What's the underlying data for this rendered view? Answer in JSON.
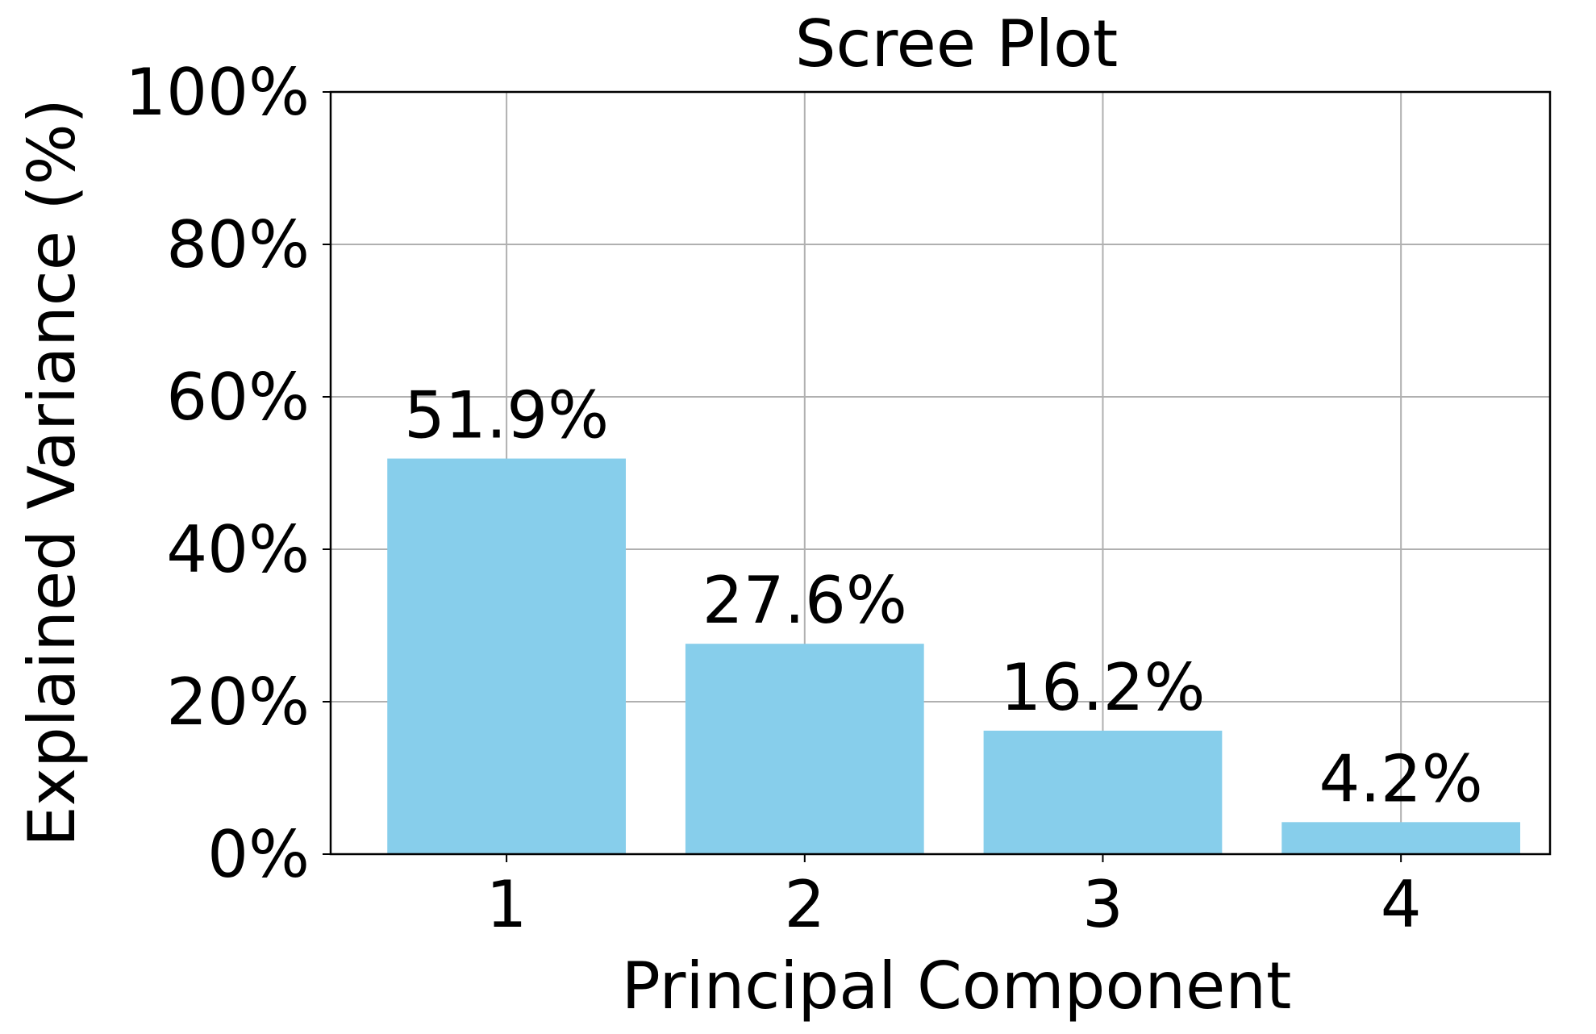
{
  "chart_data": {
    "type": "bar",
    "title": "Scree Plot",
    "x_label": "Principal Component",
    "y_label": "Explained Variance (%)",
    "x": [
      1,
      2,
      3,
      4
    ],
    "values": [
      51.9,
      27.6,
      16.2,
      4.2
    ],
    "value_labels": [
      "51.9%",
      "27.6%",
      "16.2%",
      "4.2%"
    ],
    "color": "#87ceeb",
    "xlim": [
      0.41,
      4.5
    ],
    "xticks": [
      1,
      2,
      3,
      4
    ],
    "ylim": [
      0,
      100
    ],
    "yticks": [
      {
        "value": 0,
        "label": "0%"
      },
      {
        "value": 20,
        "label": "20%"
      },
      {
        "value": 40,
        "label": "40%"
      },
      {
        "value": 60,
        "label": "60%"
      },
      {
        "value": 80,
        "label": "80%"
      },
      {
        "value": 100,
        "label": "100%"
      }
    ],
    "grid": true
  }
}
